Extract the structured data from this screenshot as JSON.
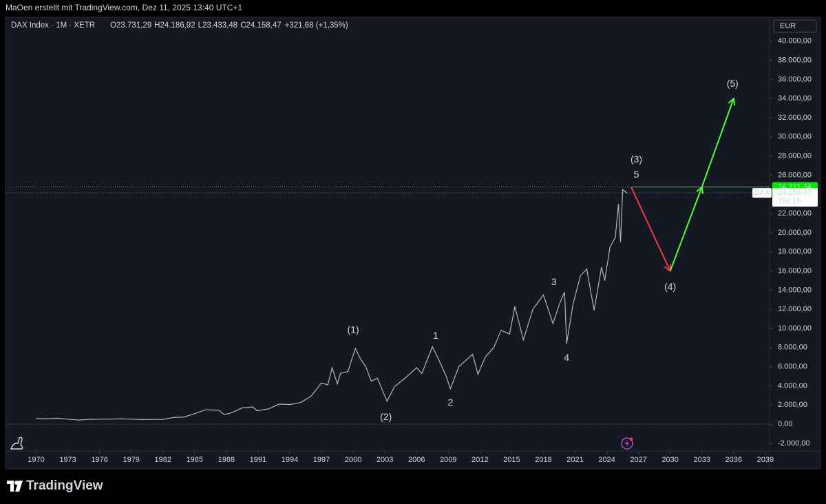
{
  "header": "MaOen erstellt mit TradingView.com, Dez 11, 2025 13:40 UTC+1",
  "footer": {
    "brand": "TradingView"
  },
  "chart_data": {
    "type": "line",
    "legend_title": "DAX Index · 1M · XETR",
    "ohlc": [
      [
        "O",
        "23.731,29"
      ],
      [
        "H",
        "24.186,92"
      ],
      [
        "L",
        "23.433,48"
      ],
      [
        "C",
        "24.158,47"
      ]
    ],
    "change": "+321,68 (+1,35%)",
    "currency": "EUR",
    "series": [
      {
        "name": "DAX",
        "color": "#b2b5be",
        "x": [
          1970,
          1971,
          1972,
          1973,
          1974,
          1975,
          1976,
          1977,
          1978,
          1979,
          1980,
          1981,
          1982,
          1983,
          1984,
          1985,
          1986,
          1987.3,
          1987.8,
          1988.5,
          1989.5,
          1990.5,
          1990.9,
          1992,
          1993,
          1994,
          1995,
          1996,
          1997,
          1997.6,
          1998,
          1998.5,
          1998.8,
          1999.5,
          2000.2,
          2000.7,
          2001.2,
          2001.7,
          2002.3,
          2003.2,
          2003.9,
          2005,
          2006,
          2006.5,
          2007.5,
          2008.2,
          2008.8,
          2009.2,
          2010,
          2011.3,
          2011.8,
          2012.5,
          2013.3,
          2014,
          2014.8,
          2015.3,
          2016.1,
          2017,
          2018,
          2018.9,
          2019.5,
          2020,
          2020.2,
          2020.8,
          2021.5,
          2022.1,
          2022.8,
          2023.5,
          2023.8,
          2024.3,
          2024.8,
          2025.1,
          2025.3,
          2025.5,
          2025.9
        ],
        "values": [
          600,
          550,
          620,
          520,
          430,
          500,
          520,
          530,
          560,
          530,
          480,
          490,
          500,
          700,
          750,
          1100,
          1500,
          1450,
          1000,
          1200,
          1700,
          1800,
          1400,
          1600,
          2100,
          2050,
          2250,
          2900,
          4300,
          4100,
          5900,
          4200,
          5300,
          5500,
          7900,
          6800,
          6000,
          4500,
          4800,
          2400,
          3900,
          4900,
          5900,
          5300,
          8100,
          6500,
          5000,
          3700,
          6000,
          7300,
          5200,
          7000,
          8000,
          9800,
          9400,
          12300,
          8800,
          12000,
          13500,
          10500,
          12500,
          13800,
          8400,
          12500,
          15500,
          16200,
          11900,
          16400,
          15000,
          18500,
          19500,
          23000,
          19000,
          24500,
          24158.47
        ]
      }
    ],
    "price_marks": [
      {
        "value": 24771.34,
        "label": "24.771,34",
        "color": "#00e600"
      },
      {
        "value": 24158.47,
        "label": "24.158,47",
        "countdown": "19d 1h",
        "color": "#ffffff"
      }
    ],
    "baseline": 0,
    "projections": [
      {
        "color": "#f23645",
        "x": [
          2026.3,
          2030
        ],
        "values": [
          24771.34,
          16000
        ]
      },
      {
        "color": "#4cff30",
        "x": [
          2030,
          2033,
          2036
        ],
        "values": [
          16000,
          24771.34,
          34000
        ]
      }
    ],
    "wave_labels": [
      {
        "text": "(1)",
        "x": 2000,
        "y": 9800,
        "color": "#f5d442"
      },
      {
        "text": "(2)",
        "x": 2003.1,
        "y": 700,
        "color": "#f5d442"
      },
      {
        "text": "(3)",
        "x": 2026.8,
        "y": 27600,
        "color": "#f5d442"
      },
      {
        "text": "(4)",
        "x": 2030,
        "y": 14300,
        "color": "#f5d442"
      },
      {
        "text": "(5)",
        "x": 2035.9,
        "y": 35500,
        "color": "#f5d442"
      },
      {
        "text": "1",
        "x": 2007.8,
        "y": 9200,
        "color": "#4caf50"
      },
      {
        "text": "2",
        "x": 2009.2,
        "y": 2200,
        "color": "#4caf50"
      },
      {
        "text": "3",
        "x": 2019,
        "y": 14800,
        "color": "#4caf50"
      },
      {
        "text": "4",
        "x": 2020.2,
        "y": 6900,
        "color": "#4caf50"
      },
      {
        "text": "5",
        "x": 2026.8,
        "y": 26000,
        "color": "#4caf50"
      }
    ],
    "xlim": [
      1967.1,
      2039.4
    ],
    "xticks": [
      1970,
      1973,
      1976,
      1979,
      1982,
      1985,
      1988,
      1991,
      1994,
      1997,
      2000,
      2003,
      2006,
      2009,
      2012,
      2015,
      2018,
      2021,
      2024,
      2027,
      2030,
      2033,
      2036,
      2039
    ],
    "ylim": [
      -2800,
      42500
    ],
    "yticks": [
      {
        "value": -2000,
        "label": "-2.000,00"
      },
      {
        "value": 0,
        "label": "0,00"
      },
      {
        "value": 2000,
        "label": "2.000,00"
      },
      {
        "value": 4000,
        "label": "4.000,00"
      },
      {
        "value": 6000,
        "label": "6.000,00"
      },
      {
        "value": 8000,
        "label": "8.000,00"
      },
      {
        "value": 10000,
        "label": "10.000,00"
      },
      {
        "value": 12000,
        "label": "12.000,00"
      },
      {
        "value": 14000,
        "label": "14.000,00"
      },
      {
        "value": 16000,
        "label": "16.000,00"
      },
      {
        "value": 18000,
        "label": "18.000,00"
      },
      {
        "value": 20000,
        "label": "20.000,00"
      },
      {
        "value": 22000,
        "label": "22.000,00"
      },
      {
        "value": 26000,
        "label": "26.000,00"
      },
      {
        "value": 28000,
        "label": "28.000,00"
      },
      {
        "value": 30000,
        "label": "30.000,00"
      },
      {
        "value": 32000,
        "label": "32.000,00"
      },
      {
        "value": 34000,
        "label": "34.000,00"
      },
      {
        "value": 36000,
        "label": "36.000,00"
      },
      {
        "value": 38000,
        "label": "38.000,00"
      },
      {
        "value": 40000,
        "label": "40.000,00"
      }
    ]
  }
}
